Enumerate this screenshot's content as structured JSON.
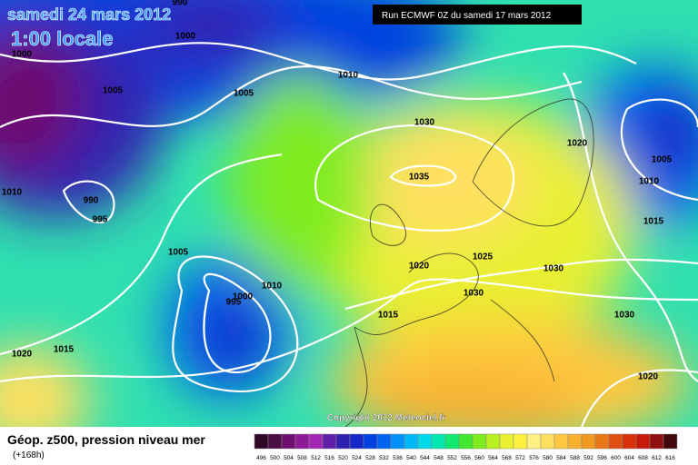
{
  "header": {
    "date": "samedi 24 mars 2012",
    "time": "1:00 locale",
    "run": "Run ECMWF 0Z du samedi 17 mars 2012"
  },
  "isobar_labels": [
    "990",
    "1000",
    "1000",
    "1005",
    "1005",
    "1010",
    "1030",
    "1035",
    "1020",
    "1005",
    "1010",
    "1010",
    "990",
    "995",
    "1015",
    "1005",
    "1025",
    "1030",
    "1020",
    "1010",
    "1000",
    "995",
    "1030",
    "1015",
    "1030",
    "1020",
    "1015",
    "1020"
  ],
  "copyright": "Copyright 2012 Meteociel.fr",
  "legend": {
    "title": "Géop. z500, pression niveau mer",
    "lead": "(+168h)",
    "scale": [
      {
        "value": 496,
        "color": "#300828"
      },
      {
        "value": 500,
        "color": "#4c0c44"
      },
      {
        "value": 504,
        "color": "#6e1070"
      },
      {
        "value": 508,
        "color": "#8c1a96"
      },
      {
        "value": 512,
        "color": "#a228b4"
      },
      {
        "value": 516,
        "color": "#6020a8"
      },
      {
        "value": 520,
        "color": "#3020b0"
      },
      {
        "value": 524,
        "color": "#1428c8"
      },
      {
        "value": 528,
        "color": "#0040e0"
      },
      {
        "value": 532,
        "color": "#0064f0"
      },
      {
        "value": 536,
        "color": "#0090f8"
      },
      {
        "value": 540,
        "color": "#00b8f8"
      },
      {
        "value": 544,
        "color": "#00d8e8"
      },
      {
        "value": 548,
        "color": "#00e8b0"
      },
      {
        "value": 552,
        "color": "#10e870"
      },
      {
        "value": 556,
        "color": "#40e830"
      },
      {
        "value": 560,
        "color": "#80ec20"
      },
      {
        "value": 564,
        "color": "#b8f020"
      },
      {
        "value": 568,
        "color": "#e8f030"
      },
      {
        "value": 572,
        "color": "#fff040"
      },
      {
        "value": 576,
        "color": "#fff080"
      },
      {
        "value": 580,
        "color": "#ffe060"
      },
      {
        "value": 584,
        "color": "#ffc840"
      },
      {
        "value": 588,
        "color": "#f8b030"
      },
      {
        "value": 592,
        "color": "#f09820"
      },
      {
        "value": 596,
        "color": "#e87818"
      },
      {
        "value": 600,
        "color": "#e05010"
      },
      {
        "value": 604,
        "color": "#d83008"
      },
      {
        "value": 608,
        "color": "#c81808"
      },
      {
        "value": 612,
        "color": "#901010"
      },
      {
        "value": 616,
        "color": "#400808"
      }
    ]
  }
}
